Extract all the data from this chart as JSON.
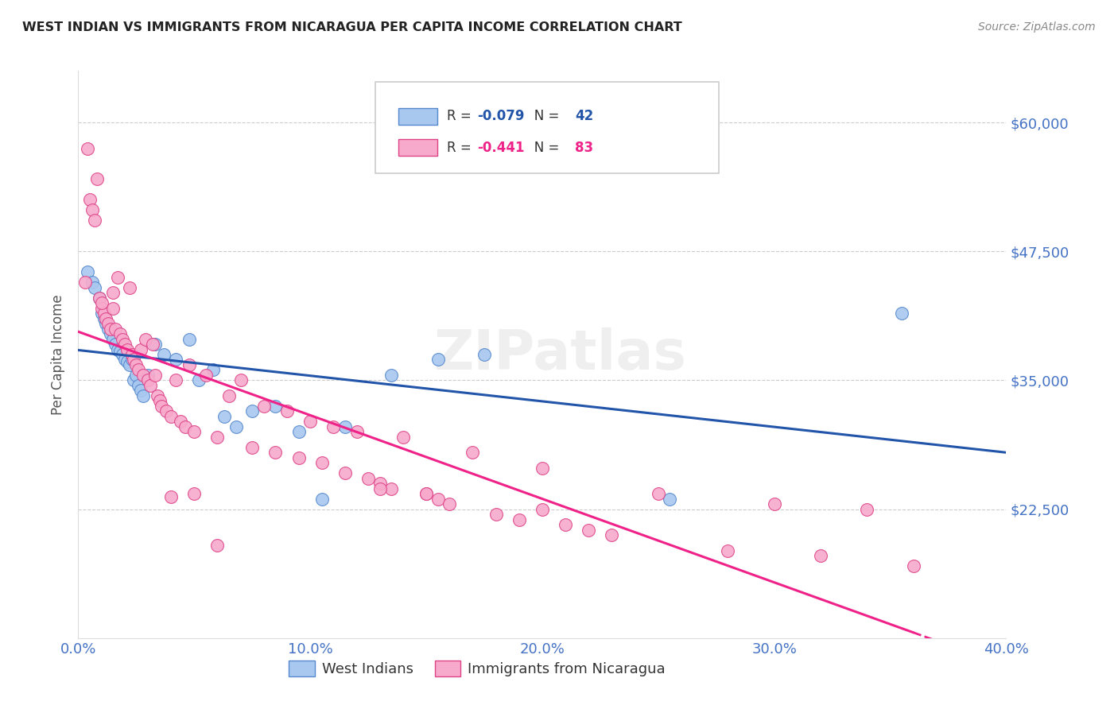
{
  "title": "WEST INDIAN VS IMMIGRANTS FROM NICARAGUA PER CAPITA INCOME CORRELATION CHART",
  "source": "Source: ZipAtlas.com",
  "ylabel": "Per Capita Income",
  "xlim": [
    0.0,
    0.4
  ],
  "ylim": [
    10000,
    65000
  ],
  "yticks": [
    22500,
    35000,
    47500,
    60000
  ],
  "ytick_labels": [
    "$22,500",
    "$35,000",
    "$47,500",
    "$60,000"
  ],
  "xticks": [
    0.0,
    0.1,
    0.2,
    0.3,
    0.4
  ],
  "xtick_labels": [
    "0.0%",
    "10.0%",
    "20.0%",
    "30.0%",
    "40.0%"
  ],
  "watermark": "ZIPatlas",
  "legend_labels": [
    "West Indians",
    "Immigrants from Nicaragua"
  ],
  "blue_R": "-0.079",
  "blue_N": "42",
  "pink_R": "-0.441",
  "pink_N": "83",
  "blue_fill": "#a8c8f0",
  "pink_fill": "#f8aacc",
  "blue_edge": "#5588cc",
  "pink_edge": "#dd4488",
  "blue_line": "#2255aa",
  "pink_line": "#ee2288",
  "title_color": "#222222",
  "source_color": "#888888",
  "ylabel_color": "#555555",
  "tick_color": "#4472c4",
  "grid_color": "#cccccc",
  "blue_scatter_x": [
    0.004,
    0.006,
    0.007,
    0.009,
    0.01,
    0.011,
    0.012,
    0.013,
    0.014,
    0.015,
    0.016,
    0.017,
    0.018,
    0.019,
    0.02,
    0.021,
    0.022,
    0.023,
    0.024,
    0.025,
    0.026,
    0.027,
    0.028,
    0.03,
    0.033,
    0.037,
    0.042,
    0.048,
    0.052,
    0.058,
    0.063,
    0.068,
    0.075,
    0.085,
    0.095,
    0.105,
    0.115,
    0.135,
    0.155,
    0.175,
    0.255,
    0.355
  ],
  "blue_scatter_y": [
    45500,
    44500,
    44000,
    43000,
    41500,
    41000,
    40500,
    40000,
    39500,
    39000,
    38500,
    38000,
    37800,
    37500,
    37000,
    36800,
    36500,
    37000,
    35000,
    35500,
    34500,
    34000,
    33500,
    35500,
    38500,
    37500,
    37000,
    39000,
    35000,
    36000,
    31500,
    30500,
    32000,
    32500,
    30000,
    23500,
    30500,
    35500,
    37000,
    37500,
    23500,
    41500
  ],
  "pink_scatter_x": [
    0.003,
    0.004,
    0.005,
    0.006,
    0.007,
    0.008,
    0.009,
    0.01,
    0.011,
    0.012,
    0.013,
    0.014,
    0.015,
    0.016,
    0.017,
    0.018,
    0.019,
    0.02,
    0.021,
    0.022,
    0.023,
    0.024,
    0.025,
    0.026,
    0.027,
    0.028,
    0.029,
    0.03,
    0.031,
    0.032,
    0.033,
    0.034,
    0.035,
    0.036,
    0.038,
    0.04,
    0.042,
    0.044,
    0.046,
    0.048,
    0.05,
    0.055,
    0.06,
    0.065,
    0.07,
    0.075,
    0.08,
    0.085,
    0.09,
    0.095,
    0.1,
    0.105,
    0.11,
    0.115,
    0.12,
    0.125,
    0.13,
    0.135,
    0.14,
    0.15,
    0.155,
    0.16,
    0.17,
    0.18,
    0.19,
    0.2,
    0.21,
    0.22,
    0.23,
    0.25,
    0.28,
    0.3,
    0.32,
    0.34,
    0.36,
    0.04,
    0.05,
    0.06,
    0.13,
    0.15,
    0.2,
    0.01,
    0.015
  ],
  "pink_scatter_y": [
    44500,
    57500,
    52500,
    51500,
    50500,
    54500,
    43000,
    42000,
    41500,
    41000,
    40500,
    40000,
    43500,
    40000,
    45000,
    39500,
    39000,
    38500,
    38000,
    44000,
    37500,
    37000,
    36500,
    36000,
    38000,
    35500,
    39000,
    35000,
    34500,
    38500,
    35500,
    33500,
    33000,
    32500,
    32000,
    31500,
    35000,
    31000,
    30500,
    36500,
    30000,
    35500,
    29500,
    33500,
    35000,
    28500,
    32500,
    28000,
    32000,
    27500,
    31000,
    27000,
    30500,
    26000,
    30000,
    25500,
    25000,
    24500,
    29500,
    24000,
    23500,
    23000,
    28000,
    22000,
    21500,
    26500,
    21000,
    20500,
    20000,
    24000,
    18500,
    23000,
    18000,
    22500,
    17000,
    23700,
    24000,
    19000,
    24500,
    24000,
    22500,
    42500,
    42000
  ]
}
